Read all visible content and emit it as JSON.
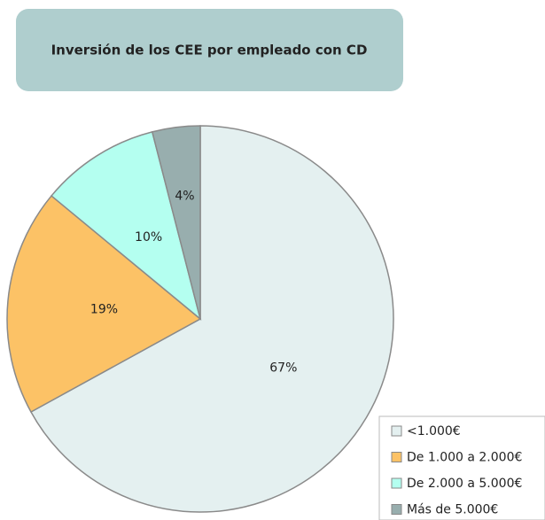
{
  "chart_data": {
    "type": "pie",
    "title": "Inversión de los CEE por empleado con CD",
    "categories": [
      "<1.000€",
      "De 1.000 a 2.000€",
      "De 2.000 a 5.000€",
      "Más de 5.000€"
    ],
    "values": [
      67,
      19,
      10,
      4
    ],
    "value_labels": [
      "67%",
      "19%",
      "10%",
      "4%"
    ],
    "colors": [
      "#e4f0f0",
      "#fcc266",
      "#b4fff0",
      "#98aeae"
    ],
    "legend": "bottom-right"
  }
}
